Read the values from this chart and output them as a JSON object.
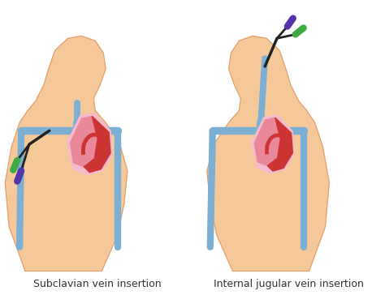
{
  "background_color": "#ffffff",
  "skin_color": "#F5C89A",
  "skin_dark": "#E0A070",
  "vein_color": "#7BAFD4",
  "vein_dark": "#5A9BBF",
  "heart_red": "#CC3333",
  "heart_pink": "#E88899",
  "heart_light": "#F5BBCC",
  "heart_dark": "#AA2222",
  "catheter_green": "#3DAA44",
  "catheter_purple": "#5533AA",
  "catheter_dark": "#222222",
  "label_left": "Subclavian vein insertion",
  "label_right": "Internal jugular vein insertion",
  "label_fontsize": 9,
  "label_color": "#333333",
  "fig_width": 4.74,
  "fig_height": 3.64,
  "dpi": 100
}
